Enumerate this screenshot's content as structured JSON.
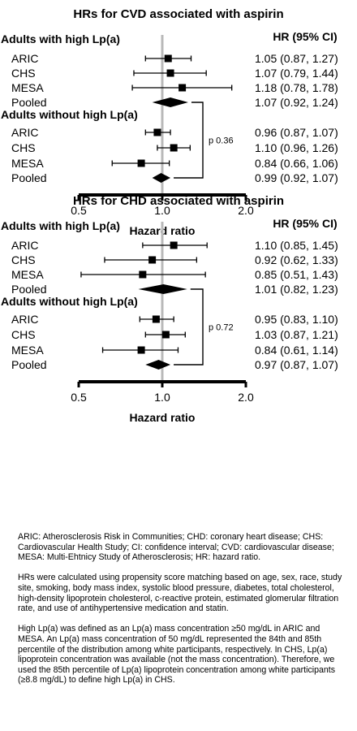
{
  "chart_data": [
    {
      "type": "forest",
      "title": "HRs for CVD associated with aspirin",
      "column_header": "HR (95% CI)",
      "xlabel": "Hazard ratio",
      "xlim": [
        0.5,
        2.0
      ],
      "x_ticks": [
        "0.5",
        "1.0",
        "2.0"
      ],
      "reference_line": 1.0,
      "groups": [
        {
          "label": "Adults with high Lp(a)",
          "rows": [
            {
              "study": "ARIC",
              "hr": 1.05,
              "lo": 0.87,
              "hi": 1.27,
              "ci_text": "1.05 (0.87, 1.27)"
            },
            {
              "study": "CHS",
              "hr": 1.07,
              "lo": 0.79,
              "hi": 1.44,
              "ci_text": "1.07 (0.79, 1.44)"
            },
            {
              "study": "MESA",
              "hr": 1.18,
              "lo": 0.78,
              "hi": 1.78,
              "ci_text": "1.18 (0.78, 1.78)"
            },
            {
              "study": "Pooled",
              "hr": 1.07,
              "lo": 0.92,
              "hi": 1.24,
              "ci_text": "1.07 (0.92, 1.24)",
              "pooled": true
            }
          ]
        },
        {
          "label": "Adults without high Lp(a)",
          "rows": [
            {
              "study": "ARIC",
              "hr": 0.96,
              "lo": 0.87,
              "hi": 1.07,
              "ci_text": "0.96 (0.87, 1.07)"
            },
            {
              "study": "CHS",
              "hr": 1.1,
              "lo": 0.96,
              "hi": 1.26,
              "ci_text": "1.10 (0.96, 1.26)"
            },
            {
              "study": "MESA",
              "hr": 0.84,
              "lo": 0.66,
              "hi": 1.06,
              "ci_text": "0.84 (0.66, 1.06)"
            },
            {
              "study": "Pooled",
              "hr": 0.99,
              "lo": 0.92,
              "hi": 1.07,
              "ci_text": "0.99 (0.92, 1.07)",
              "pooled": true
            }
          ]
        }
      ],
      "interaction_p": "p 0.36"
    },
    {
      "type": "forest",
      "title": "HRs for CHD associated with aspirin",
      "column_header": "HR (95% CI)",
      "xlabel": "Hazard ratio",
      "xlim": [
        0.5,
        2.0
      ],
      "x_ticks": [
        "0.5",
        "1.0",
        "2.0"
      ],
      "reference_line": 1.0,
      "groups": [
        {
          "label": "Adults with high Lp(a)",
          "rows": [
            {
              "study": "ARIC",
              "hr": 1.1,
              "lo": 0.85,
              "hi": 1.45,
              "ci_text": "1.10 (0.85, 1.45)"
            },
            {
              "study": "CHS",
              "hr": 0.92,
              "lo": 0.62,
              "hi": 1.33,
              "ci_text": "0.92 (0.62, 1.33)"
            },
            {
              "study": "MESA",
              "hr": 0.85,
              "lo": 0.51,
              "hi": 1.43,
              "ci_text": "0.85 (0.51, 1.43)"
            },
            {
              "study": "Pooled",
              "hr": 1.01,
              "lo": 0.82,
              "hi": 1.23,
              "ci_text": "1.01 (0.82, 1.23)",
              "pooled": true
            }
          ]
        },
        {
          "label": "Adults without high Lp(a)",
          "rows": [
            {
              "study": "ARIC",
              "hr": 0.95,
              "lo": 0.83,
              "hi": 1.1,
              "ci_text": "0.95 (0.83, 1.10)"
            },
            {
              "study": "CHS",
              "hr": 1.03,
              "lo": 0.87,
              "hi": 1.21,
              "ci_text": "1.03 (0.87, 1.21)"
            },
            {
              "study": "MESA",
              "hr": 0.84,
              "lo": 0.61,
              "hi": 1.14,
              "ci_text": "0.84 (0.61, 1.14)"
            },
            {
              "study": "Pooled",
              "hr": 0.97,
              "lo": 0.87,
              "hi": 1.07,
              "ci_text": "0.97 (0.87, 1.07)",
              "pooled": true
            }
          ]
        }
      ],
      "interaction_p": "p 0.72"
    }
  ],
  "notes": {
    "abbreviations": "ARIC: Atherosclerosis Risk in Communities; CHD: coronary heart disease; CHS: Cardiovascular Health Study; CI: confidence interval; CVD: cardiovascular disease; MESA: Multi-Ehtnicy Study of Atherosclerosis; HR: hazard ratio.",
    "matching": "HRs were calculated using propensity score matching based on age, sex, race, study site, smoking, body mass index, systolic blood pressure, diabetes, total cholesterol, high-density lipoprotein cholesterol, c-reactive protein, estimated glomerular filtration rate, and use of antihypertensive medication and statin.",
    "definition": "High Lp(a) was defined as an Lp(a) mass concentration ≥50 mg/dL in ARIC and MESA. An Lp(a) mass concentration of 50 mg/dL represented the 84th and 85th percentile of the distribution among white participants, respectively. In CHS, Lp(a) lipoprotein concentration was available (not the mass concentration). Therefore, we used the 85th percentile of Lp(a) lipoprotein concentration among white participants (≥8.8 mg/dL) to define high Lp(a) in CHS."
  }
}
